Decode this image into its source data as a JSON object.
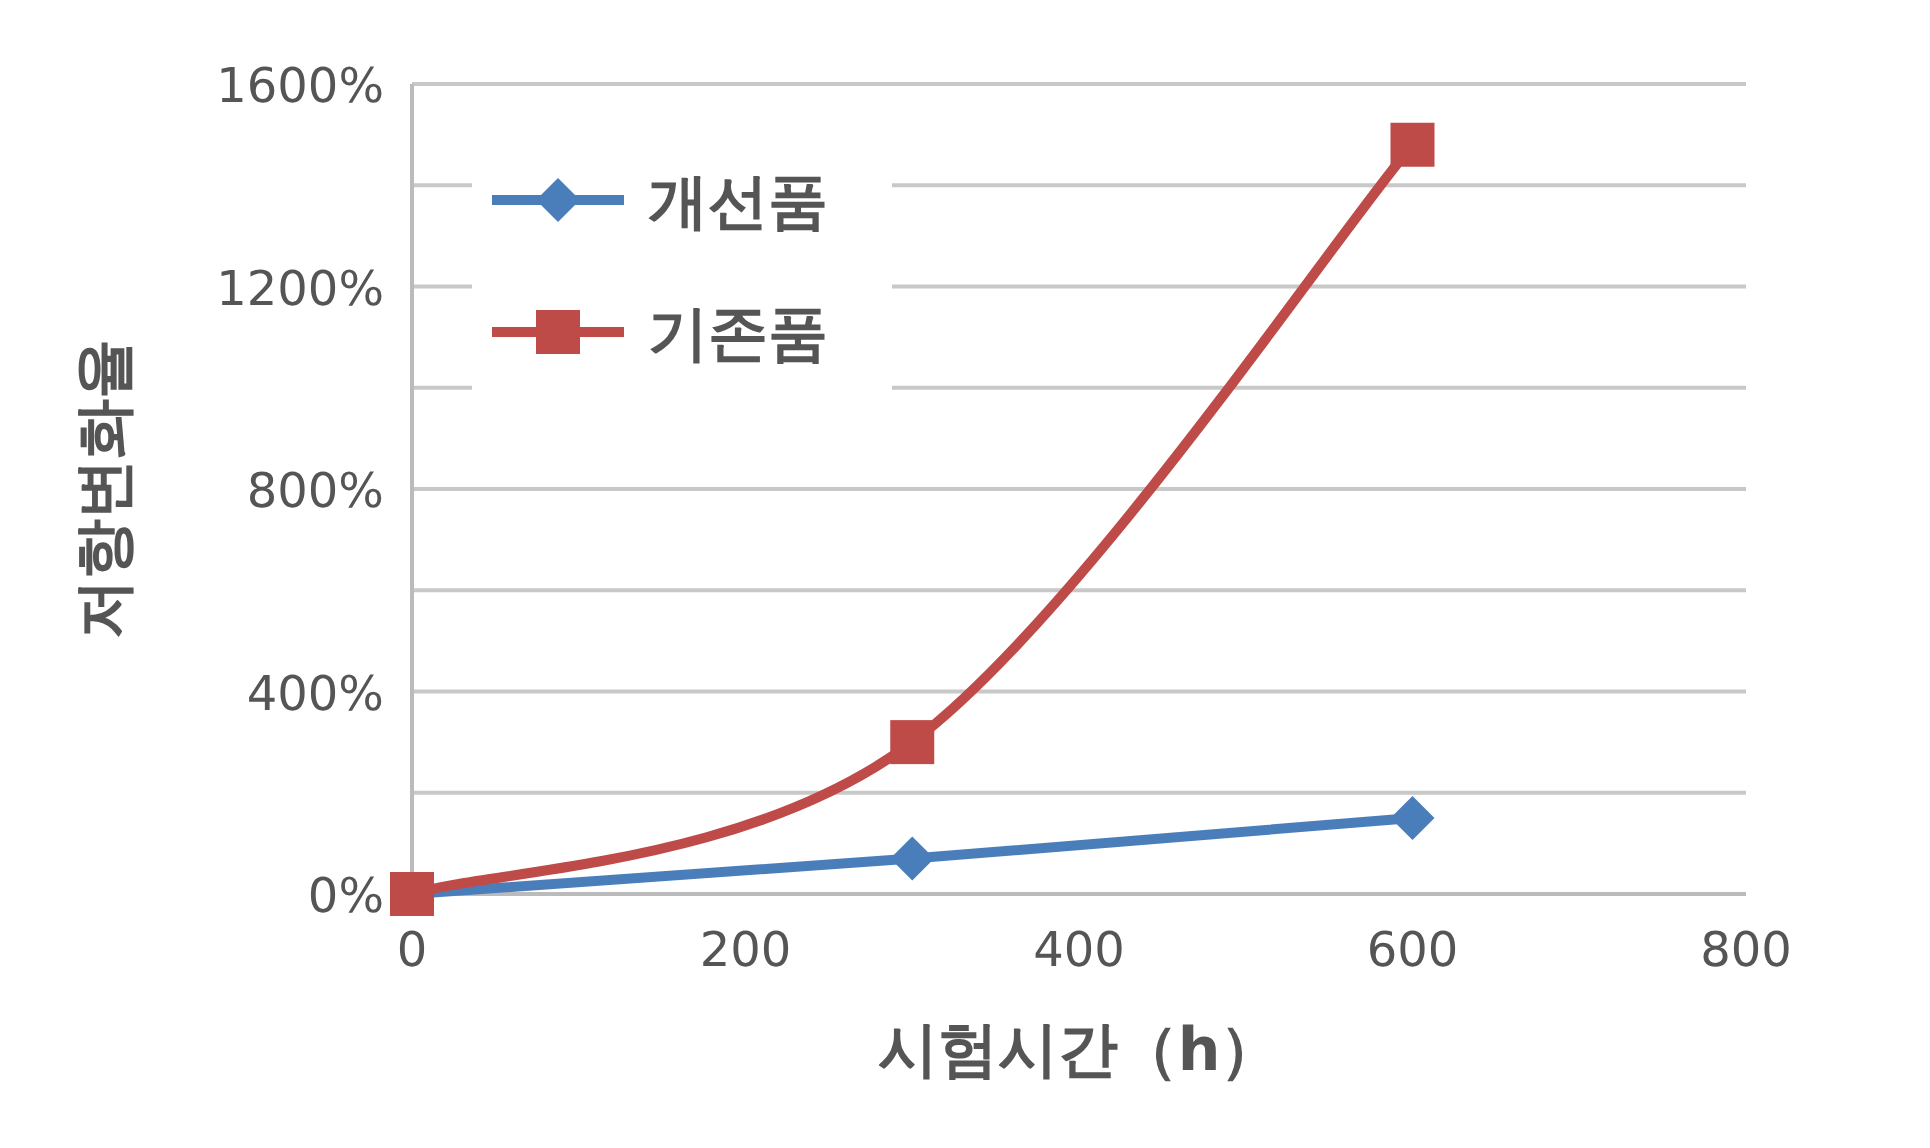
{
  "chart_data": {
    "type": "line",
    "xlabel": "시험시간（h）",
    "ylabel": "저항변화율",
    "x": [
      0,
      300,
      600
    ],
    "series": [
      {
        "name": "개선품",
        "color": "#4a7ebb",
        "marker": "diamond",
        "values": [
          0,
          70,
          150
        ]
      },
      {
        "name": "기존품",
        "color": "#be4b48",
        "marker": "square",
        "values": [
          0,
          300,
          1480
        ]
      }
    ],
    "xlim": [
      0,
      800
    ],
    "xticks": [
      0,
      200,
      400,
      600,
      800
    ],
    "ylim": [
      0,
      1600
    ],
    "yticks": [
      {
        "value": 0,
        "label": "0%"
      },
      {
        "value": 200,
        "label": null
      },
      {
        "value": 400,
        "label": "400%"
      },
      {
        "value": 600,
        "label": null
      },
      {
        "value": 800,
        "label": "800%"
      },
      {
        "value": 1000,
        "label": null
      },
      {
        "value": 1200,
        "label": "1200%"
      },
      {
        "value": 1400,
        "label": null
      },
      {
        "value": 1600,
        "label": "1600%"
      }
    ],
    "grid": "y",
    "legend": "top left"
  }
}
